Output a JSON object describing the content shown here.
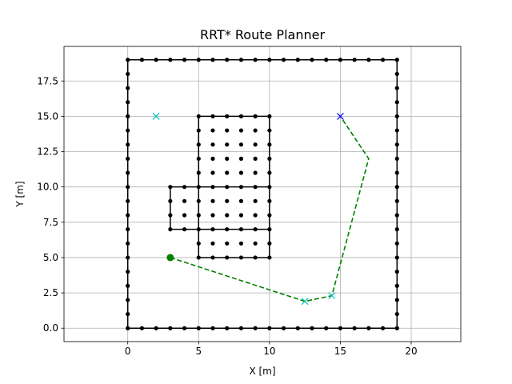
{
  "chart_data": {
    "type": "scatter",
    "title": "RRT* Route Planner",
    "xlabel": "X [m]",
    "ylabel": "Y [m]",
    "xlim": [
      -4.5,
      23.5
    ],
    "ylim": [
      -0.95,
      19.95
    ],
    "xticks": [
      0,
      5,
      10,
      15,
      20
    ],
    "xtick_labels": [
      "0",
      "5",
      "10",
      "15",
      "20"
    ],
    "yticks": [
      0,
      2.5,
      5,
      7.5,
      10,
      12.5,
      15,
      17.5
    ],
    "ytick_labels": [
      "0.0",
      "2.5",
      "5.0",
      "7.5",
      "10.0",
      "12.5",
      "15.0",
      "17.5"
    ],
    "grid": true,
    "colors": {
      "obstacle": "#000000",
      "path": "#008000",
      "start": "#008000",
      "goal": "#0000ff",
      "waypoint": "#00bfbf"
    },
    "obstacle_outline_segments": [
      [
        [
          0,
          0
        ],
        [
          19,
          0
        ]
      ],
      [
        [
          19,
          0
        ],
        [
          19,
          19
        ]
      ],
      [
        [
          19,
          19
        ],
        [
          0,
          19
        ]
      ],
      [
        [
          0,
          19
        ],
        [
          0,
          0
        ]
      ],
      [
        [
          5,
          15
        ],
        [
          10,
          15
        ]
      ],
      [
        [
          10,
          15
        ],
        [
          10,
          5
        ]
      ],
      [
        [
          10,
          5
        ],
        [
          5,
          5
        ]
      ],
      [
        [
          5,
          5
        ],
        [
          5,
          15
        ]
      ],
      [
        [
          3,
          10
        ],
        [
          10,
          10
        ]
      ],
      [
        [
          3,
          7
        ],
        [
          10,
          7
        ]
      ],
      [
        [
          3,
          7
        ],
        [
          3,
          10
        ]
      ]
    ],
    "obstacle_point_groups": [
      {
        "x_from": 0,
        "x_to": 19,
        "y_from": 0,
        "y_to": 0
      },
      {
        "x_from": 0,
        "x_to": 19,
        "y_from": 19,
        "y_to": 19
      },
      {
        "x_from": 0,
        "x_to": 0,
        "y_from": 1,
        "y_to": 18
      },
      {
        "x_from": 19,
        "x_to": 19,
        "y_from": 1,
        "y_to": 18
      },
      {
        "x_from": 5,
        "x_to": 10,
        "y_from": 5,
        "y_to": 15
      },
      {
        "x_from": 3,
        "x_to": 4,
        "y_from": 7,
        "y_to": 10
      }
    ],
    "path": {
      "x": [
        3,
        12.5,
        14.4,
        17,
        15
      ],
      "y": [
        5,
        1.9,
        2.3,
        12,
        15
      ]
    },
    "start": {
      "x": 3,
      "y": 5
    },
    "goal": {
      "x": 15,
      "y": 15
    },
    "waypoints": {
      "x": [
        2,
        12.5,
        14.4
      ],
      "y": [
        15,
        1.9,
        2.3
      ]
    }
  }
}
